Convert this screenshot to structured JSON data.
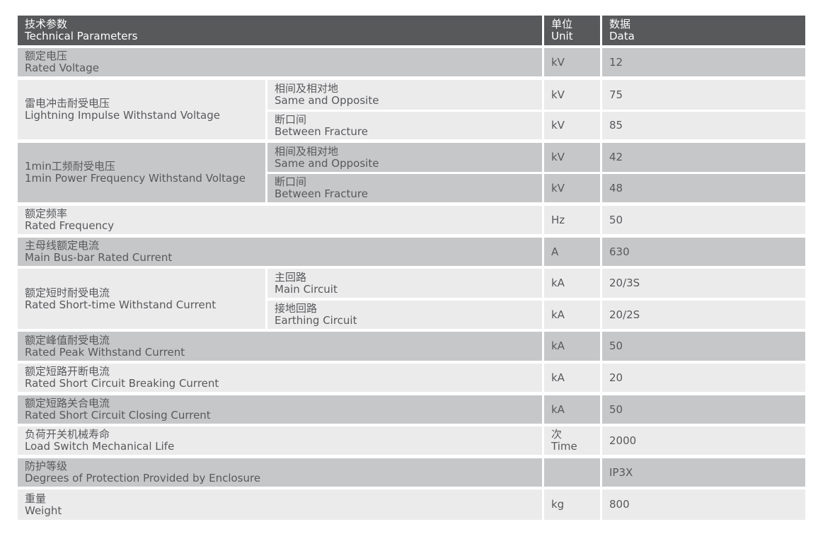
{
  "colors": {
    "header": "#58595b",
    "row_dark": "#c6c7c8",
    "row_light": "#ebebec",
    "text": "#58595b"
  },
  "header": {
    "param_cn": "技术参数",
    "param_en": "Technical Parameters",
    "unit_cn": "单位",
    "unit_en": "Unit",
    "data_cn": "数据",
    "data_en": "Data"
  },
  "rows": [
    {
      "cn": "额定电压",
      "en": "Rated Voltage",
      "unit": "kV",
      "value": "12"
    },
    {
      "cn": "雷电冲击耐受电压",
      "en": "Lightning Impulse Withstand Voltage",
      "subs": [
        {
          "cn": "相间及相对地",
          "en": "Same and Opposite",
          "unit": "kV",
          "value": "75"
        },
        {
          "cn": "断口间",
          "en": "Between Fracture",
          "unit": "kV",
          "value": "85"
        }
      ]
    },
    {
      "cn": "1min工频耐受电压",
      "en": "1min Power Frequency Withstand Voltage",
      "subs": [
        {
          "cn": "相间及相对地",
          "en": "Same and Opposite",
          "unit": "kV",
          "value": "42"
        },
        {
          "cn": "断口间",
          "en": "Between Fracture",
          "unit": "kV",
          "value": "48"
        }
      ]
    },
    {
      "cn": "额定频率",
      "en": "Rated Frequency",
      "unit": "Hz",
      "value": "50"
    },
    {
      "cn": "主母线额定电流",
      "en": "Main Bus-bar Rated Current",
      "unit": "A",
      "value": "630"
    },
    {
      "cn": "额定短时耐受电流",
      "en": "Rated Short-time Withstand Current",
      "subs": [
        {
          "cn": "主回路",
          "en": "Main Circuit",
          "unit": "kA",
          "value": "20/3S"
        },
        {
          "cn": "接地回路",
          "en": "Earthing Circuit",
          "unit": "kA",
          "value": "20/2S"
        }
      ]
    },
    {
      "cn": "额定峰值耐受电流",
      "en": "Rated Peak Withstand Current",
      "unit": "kA",
      "value": "50"
    },
    {
      "cn": "额定短路开断电流",
      "en": "Rated Short Circuit Breaking Current",
      "unit": "kA",
      "value": "20"
    },
    {
      "cn": "额定短路关合电流",
      "en": "Rated Short Circuit Closing Current",
      "unit": "kA",
      "value": "50"
    },
    {
      "cn": "负荷开关机械寿命",
      "en": "Load Switch Mechanical Life",
      "unit": "次",
      "unit_en": "Time",
      "value": "2000"
    },
    {
      "cn": "防护等级",
      "en": "Degrees of Protection Provided by Enclosure",
      "unit": "",
      "value": "IP3X"
    },
    {
      "cn": "重量",
      "en": "Weight",
      "unit": "kg",
      "value": "800"
    }
  ]
}
